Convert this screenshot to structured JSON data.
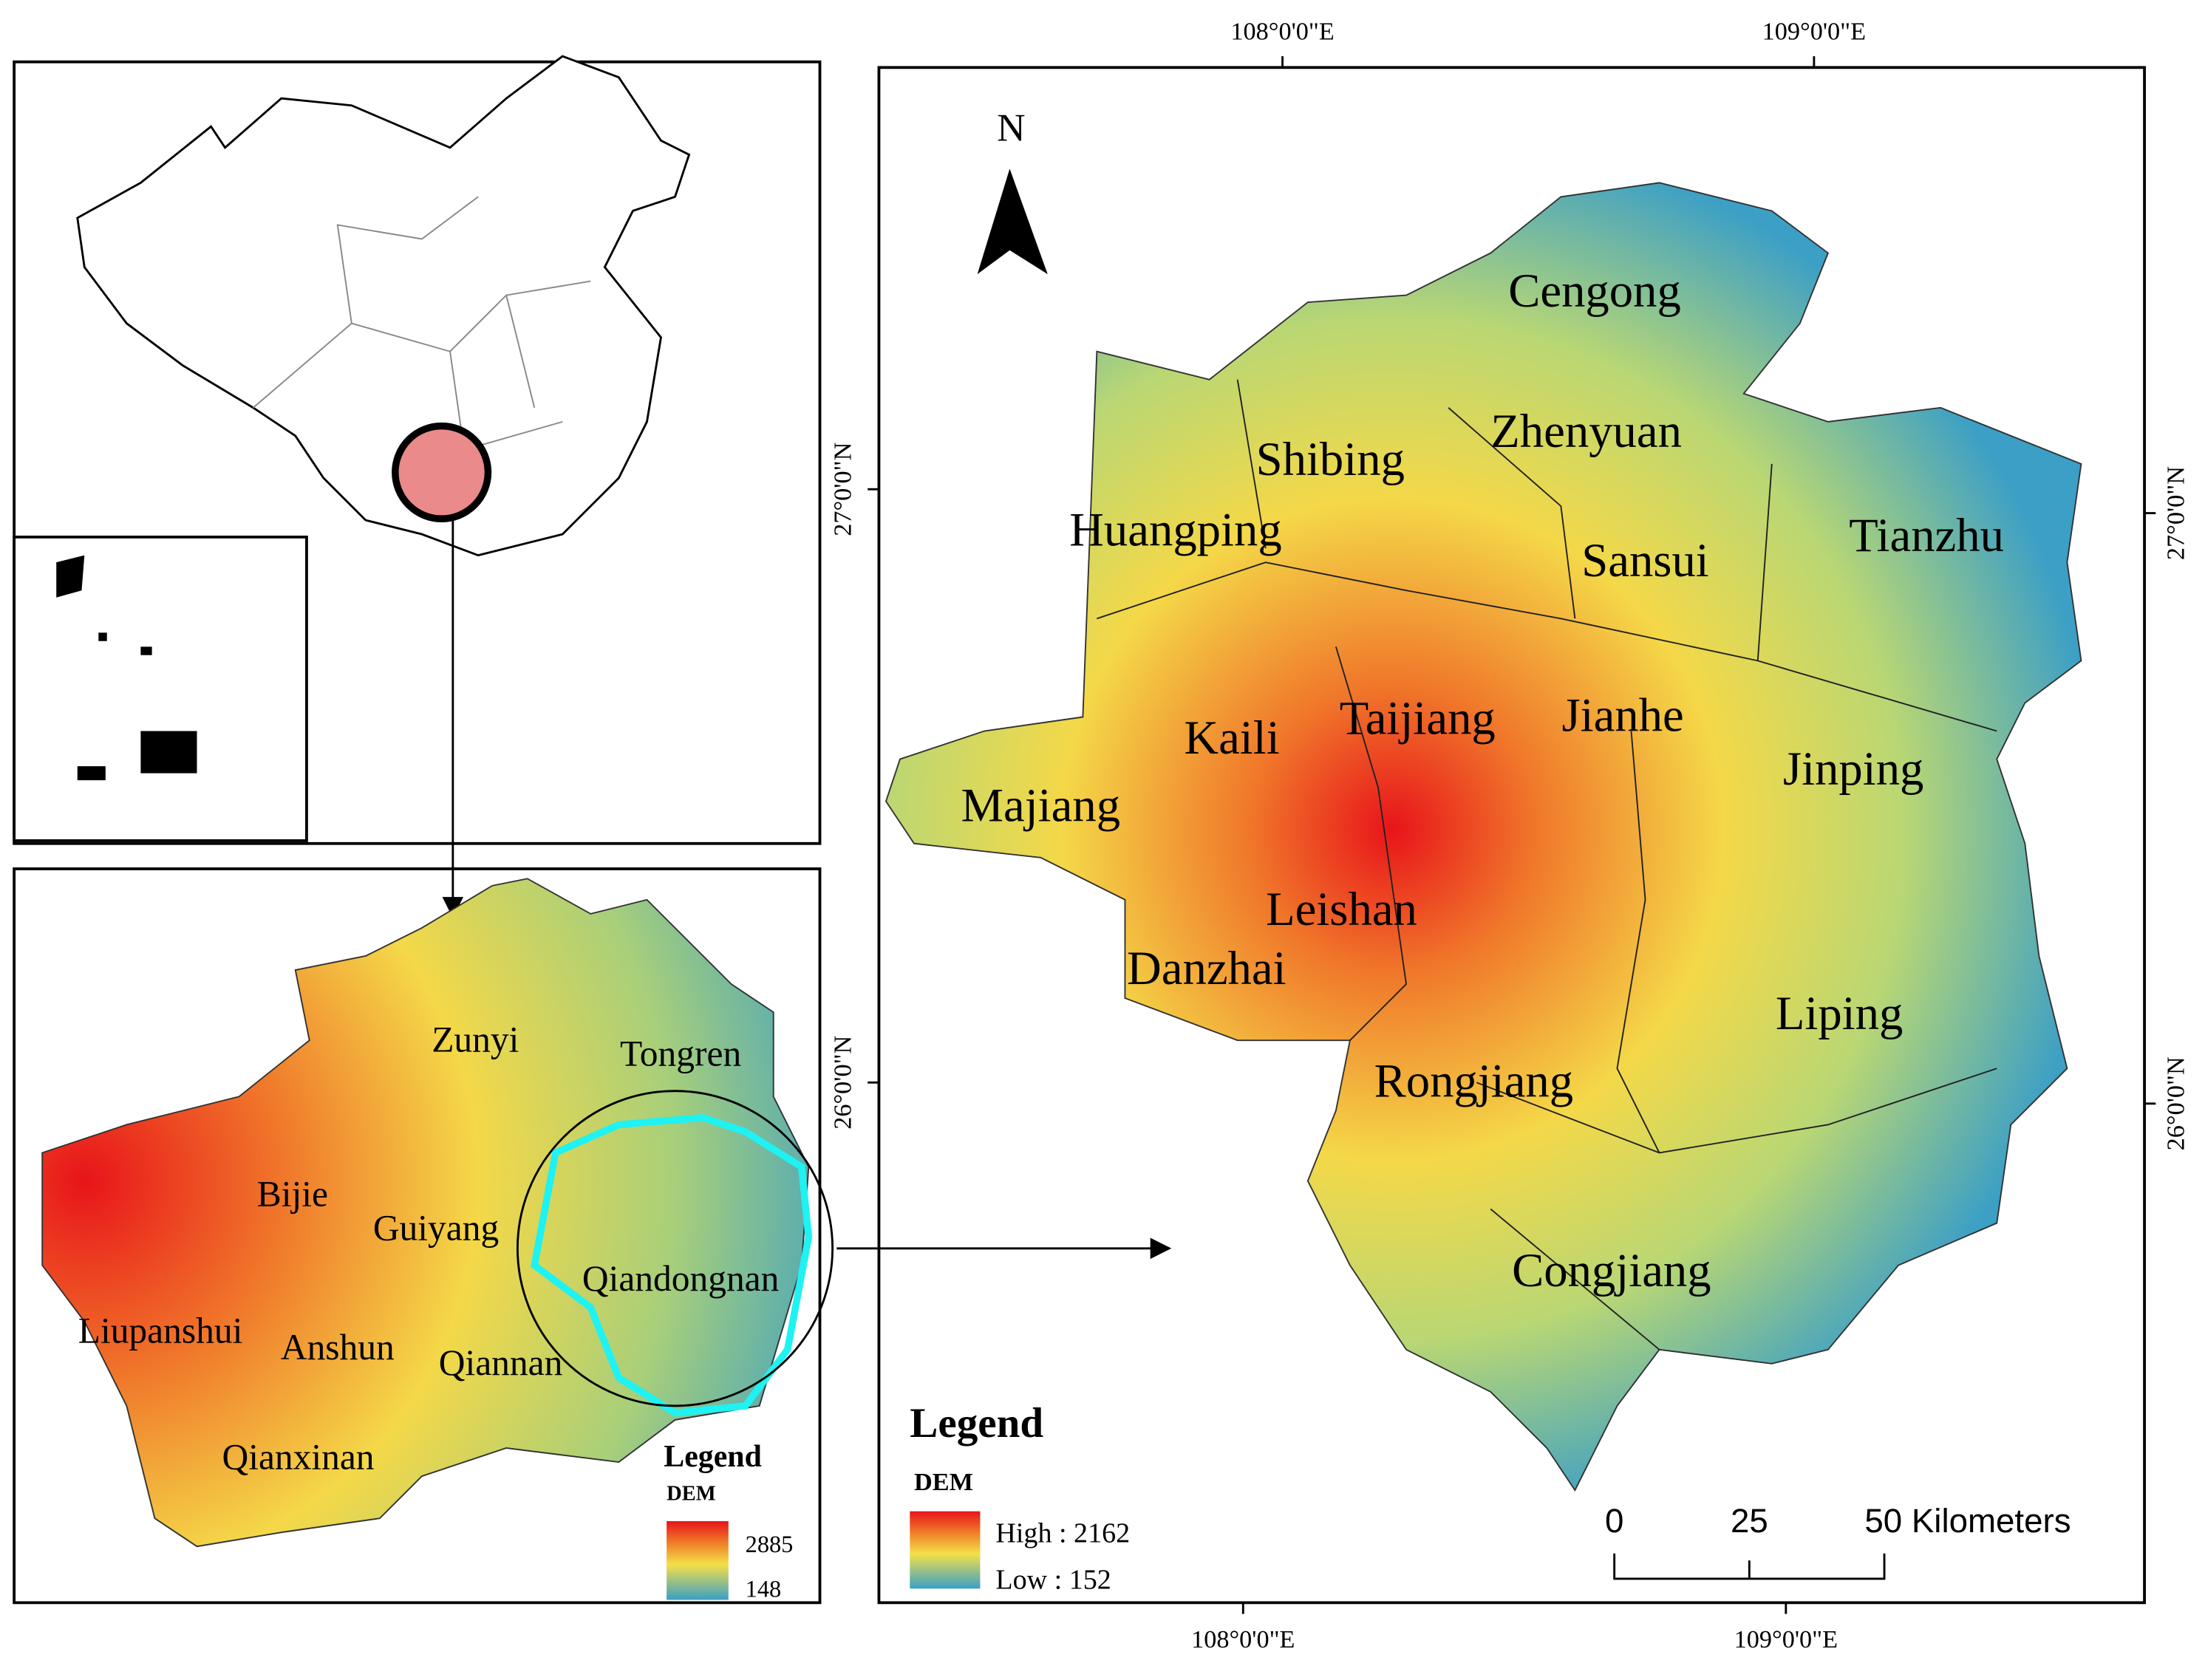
{
  "graticule": {
    "top": [
      "108°0'0\"E",
      "109°0'0\"E"
    ],
    "bottom": [
      "108°0'0\"E",
      "109°0'0\"E"
    ],
    "left": [
      "27°0'0\"N",
      "26°0'0\"N"
    ],
    "right": [
      "27°0'0\"N",
      "26°0'0\"N"
    ]
  },
  "north_arrow": "N",
  "main_map": {
    "counties": [
      "Cengong",
      "Shibing",
      "Zhenyuan",
      "Huangping",
      "Sansui",
      "Tianzhu",
      "Kaili",
      "Taijiang",
      "Jianhe",
      "Jinping",
      "Majiang",
      "Leishan",
      "Danzhai",
      "Liping",
      "Rongjiang",
      "Congjiang"
    ]
  },
  "main_legend": {
    "title": "Legend",
    "layer": "DEM",
    "high": "High : 2162",
    "low": "Low : 152"
  },
  "scale_bar": {
    "ticks": [
      "0",
      "25",
      "50 Kilometers"
    ]
  },
  "province_map": {
    "prefectures": [
      "Zunyi",
      "Tongren",
      "Bijie",
      "Guiyang",
      "Qiandongnan",
      "Liupanshui",
      "Anshun",
      "Qiannan",
      "Qianxinan"
    ],
    "legend": {
      "title": "Legend",
      "layer": "DEM",
      "max": "2885",
      "min": "148"
    }
  }
}
